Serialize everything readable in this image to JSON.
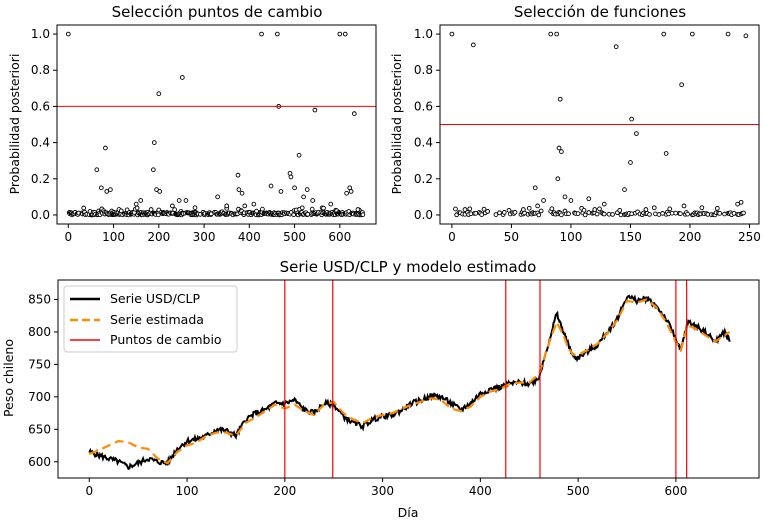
{
  "chart_data": [
    {
      "type": "scatter",
      "title": "Selección puntos de cambio",
      "xlabel": "",
      "ylabel": "Probabilidad posteriori",
      "xlim": [
        -25,
        680
      ],
      "ylim": [
        -0.05,
        1.05
      ],
      "xticks": [
        0,
        100,
        200,
        300,
        400,
        500,
        600
      ],
      "yticks": [
        0.0,
        0.2,
        0.4,
        0.6,
        0.8,
        1.0
      ],
      "threshold": 0.6,
      "threshold_color": "#ff0000",
      "marker": "open-circle",
      "points": [
        [
          0,
          1.0
        ],
        [
          63,
          0.25
        ],
        [
          73,
          0.15
        ],
        [
          82,
          0.37
        ],
        [
          85,
          0.13
        ],
        [
          93,
          0.14
        ],
        [
          188,
          0.25
        ],
        [
          190,
          0.4
        ],
        [
          195,
          0.14
        ],
        [
          200,
          0.67
        ],
        [
          202,
          0.13
        ],
        [
          252,
          0.76
        ],
        [
          245,
          0.08
        ],
        [
          260,
          0.08
        ],
        [
          375,
          0.22
        ],
        [
          377,
          0.14
        ],
        [
          384,
          0.12
        ],
        [
          390,
          0.05
        ],
        [
          427,
          1.0
        ],
        [
          448,
          0.16
        ],
        [
          462,
          1.0
        ],
        [
          465,
          0.6
        ],
        [
          470,
          0.13
        ],
        [
          490,
          0.23
        ],
        [
          492,
          0.21
        ],
        [
          500,
          0.15
        ],
        [
          510,
          0.33
        ],
        [
          520,
          0.1
        ],
        [
          528,
          0.14
        ],
        [
          545,
          0.58
        ],
        [
          600,
          1.0
        ],
        [
          612,
          1.0
        ],
        [
          615,
          0.12
        ],
        [
          622,
          0.15
        ],
        [
          625,
          0.13
        ],
        [
          632,
          0.56
        ],
        [
          330,
          0.1
        ],
        [
          150,
          0.06
        ],
        [
          160,
          0.08
        ],
        [
          230,
          0.05
        ],
        [
          280,
          0.04
        ],
        [
          350,
          0.05
        ],
        [
          410,
          0.06
        ],
        [
          540,
          0.08
        ],
        [
          580,
          0.06
        ],
        [
          640,
          0.03
        ]
      ],
      "n_points": 653
    },
    {
      "type": "scatter",
      "title": "Selección de funciones",
      "xlabel": "",
      "ylabel": "Probabilidad posteriori",
      "xlim": [
        -10,
        258
      ],
      "ylim": [
        -0.05,
        1.05
      ],
      "xticks": [
        0,
        50,
        100,
        150,
        200,
        250
      ],
      "yticks": [
        0.0,
        0.2,
        0.4,
        0.6,
        0.8,
        1.0
      ],
      "threshold": 0.5,
      "threshold_color": "#ff0000",
      "marker": "open-circle",
      "points": [
        [
          0,
          1.0
        ],
        [
          18,
          0.94
        ],
        [
          11,
          0.03
        ],
        [
          70,
          0.15
        ],
        [
          72,
          0.05
        ],
        [
          77,
          0.08
        ],
        [
          83,
          1.0
        ],
        [
          88,
          1.0
        ],
        [
          89,
          0.2
        ],
        [
          90,
          0.37
        ],
        [
          91,
          0.64
        ],
        [
          92,
          0.35
        ],
        [
          95,
          0.1
        ],
        [
          100,
          0.08
        ],
        [
          115,
          0.09
        ],
        [
          128,
          0.06
        ],
        [
          138,
          0.93
        ],
        [
          145,
          0.14
        ],
        [
          150,
          0.29
        ],
        [
          151,
          0.53
        ],
        [
          155,
          0.45
        ],
        [
          163,
          0.03
        ],
        [
          178,
          1.0
        ],
        [
          180,
          0.34
        ],
        [
          193,
          0.72
        ],
        [
          202,
          1.0
        ],
        [
          232,
          1.0
        ],
        [
          247,
          0.99
        ],
        [
          240,
          0.06
        ],
        [
          243,
          0.07
        ],
        [
          195,
          0.05
        ],
        [
          170,
          0.04
        ],
        [
          60,
          0.03
        ],
        [
          30,
          0.02
        ],
        [
          210,
          0.04
        ],
        [
          120,
          0.03
        ]
      ],
      "n_points": 247
    },
    {
      "type": "line",
      "title": "Serie USD/CLP y modelo estimado",
      "xlabel": "Día",
      "ylabel": "Peso chileno",
      "xlim": [
        -32,
        685
      ],
      "ylim": [
        575,
        880
      ],
      "xticks": [
        0,
        100,
        200,
        300,
        400,
        500,
        600
      ],
      "yticks": [
        600,
        650,
        700,
        750,
        800,
        850
      ],
      "legend_position": "top-left",
      "series": [
        {
          "name": "Serie USD/CLP",
          "color": "#000000",
          "style": "solid",
          "points": [
            [
              0,
              615
            ],
            [
              10,
              610
            ],
            [
              20,
              605
            ],
            [
              30,
              600
            ],
            [
              40,
              592
            ],
            [
              50,
              598
            ],
            [
              60,
              605
            ],
            [
              70,
              600
            ],
            [
              80,
              598
            ],
            [
              90,
              620
            ],
            [
              100,
              632
            ],
            [
              110,
              635
            ],
            [
              120,
              640
            ],
            [
              130,
              650
            ],
            [
              140,
              648
            ],
            [
              150,
              640
            ],
            [
              160,
              665
            ],
            [
              170,
              675
            ],
            [
              180,
              680
            ],
            [
              190,
              690
            ],
            [
              200,
              690
            ],
            [
              210,
              695
            ],
            [
              220,
              680
            ],
            [
              230,
              675
            ],
            [
              240,
              690
            ],
            [
              250,
              688
            ],
            [
              260,
              670
            ],
            [
              270,
              660
            ],
            [
              280,
              655
            ],
            [
              290,
              665
            ],
            [
              300,
              670
            ],
            [
              310,
              672
            ],
            [
              320,
              680
            ],
            [
              330,
              690
            ],
            [
              340,
              695
            ],
            [
              350,
              702
            ],
            [
              360,
              700
            ],
            [
              370,
              690
            ],
            [
              380,
              680
            ],
            [
              390,
              690
            ],
            [
              400,
              705
            ],
            [
              410,
              712
            ],
            [
              420,
              715
            ],
            [
              430,
              720
            ],
            [
              440,
              722
            ],
            [
              450,
              720
            ],
            [
              460,
              730
            ],
            [
              470,
              785
            ],
            [
              478,
              828
            ],
            [
              485,
              800
            ],
            [
              490,
              780
            ],
            [
              495,
              762
            ],
            [
              500,
              760
            ],
            [
              510,
              770
            ],
            [
              520,
              780
            ],
            [
              530,
              800
            ],
            [
              540,
              820
            ],
            [
              550,
              855
            ],
            [
              560,
              848
            ],
            [
              570,
              852
            ],
            [
              580,
              840
            ],
            [
              590,
              820
            ],
            [
              600,
              790
            ],
            [
              605,
              770
            ],
            [
              612,
              815
            ],
            [
              620,
              810
            ],
            [
              630,
              800
            ],
            [
              640,
              785
            ],
            [
              650,
              800
            ],
            [
              655,
              785
            ]
          ]
        },
        {
          "name": "Serie estimada",
          "color": "#ff8c00",
          "style": "dashed",
          "points": [
            [
              0,
              612
            ],
            [
              10,
              618
            ],
            [
              20,
              625
            ],
            [
              30,
              632
            ],
            [
              40,
              630
            ],
            [
              50,
              622
            ],
            [
              60,
              620
            ],
            [
              70,
              605
            ],
            [
              80,
              598
            ],
            [
              90,
              615
            ],
            [
              100,
              625
            ],
            [
              110,
              630
            ],
            [
              120,
              640
            ],
            [
              130,
              645
            ],
            [
              140,
              645
            ],
            [
              150,
              640
            ],
            [
              160,
              660
            ],
            [
              170,
              668
            ],
            [
              180,
              678
            ],
            [
              190,
              688
            ],
            [
              200,
              682
            ],
            [
              210,
              688
            ],
            [
              220,
              678
            ],
            [
              230,
              672
            ],
            [
              240,
              688
            ],
            [
              250,
              692
            ],
            [
              260,
              675
            ],
            [
              270,
              665
            ],
            [
              280,
              660
            ],
            [
              290,
              668
            ],
            [
              300,
              672
            ],
            [
              310,
              675
            ],
            [
              320,
              682
            ],
            [
              330,
              688
            ],
            [
              340,
              693
            ],
            [
              350,
              698
            ],
            [
              360,
              695
            ],
            [
              370,
              682
            ],
            [
              380,
              678
            ],
            [
              390,
              685
            ],
            [
              400,
              700
            ],
            [
              410,
              708
            ],
            [
              420,
              712
            ],
            [
              430,
              720
            ],
            [
              440,
              722
            ],
            [
              450,
              722
            ],
            [
              460,
              735
            ],
            [
              470,
              782
            ],
            [
              478,
              815
            ],
            [
              485,
              795
            ],
            [
              490,
              775
            ],
            [
              495,
              765
            ],
            [
              500,
              765
            ],
            [
              510,
              772
            ],
            [
              520,
              782
            ],
            [
              530,
              798
            ],
            [
              540,
              818
            ],
            [
              550,
              848
            ],
            [
              560,
              845
            ],
            [
              570,
              850
            ],
            [
              580,
              838
            ],
            [
              590,
              815
            ],
            [
              600,
              785
            ],
            [
              605,
              772
            ],
            [
              612,
              810
            ],
            [
              620,
              805
            ],
            [
              630,
              795
            ],
            [
              640,
              785
            ],
            [
              650,
              795
            ],
            [
              655,
              800
            ]
          ]
        }
      ],
      "change_points": {
        "name": "Puntos de cambio",
        "color": "#ff0000",
        "x": [
          200,
          249,
          426,
          461,
          600,
          611
        ]
      }
    }
  ]
}
